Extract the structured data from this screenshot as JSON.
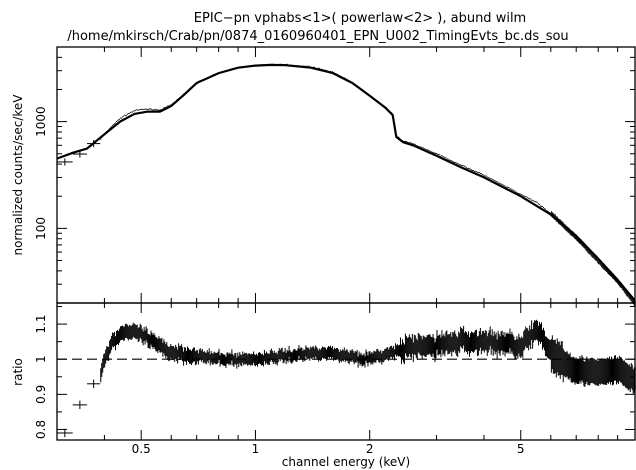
{
  "chart_data": [
    {
      "type": "line",
      "panel": "spectrum",
      "title": "EPIC−pn vphabs<1>( powerlaw<2> ), abund wilm",
      "subtitle": "/home/mkirsch/Crab/pn/0874_0160960401_EPN_U002_TimingEvts_bc.ds_sou",
      "xlabel": "",
      "ylabel": "normalized counts/sec/keV",
      "xscale": "log",
      "yscale": "log",
      "xlim": [
        0.3,
        10
      ],
      "ylim": [
        20,
        5000
      ],
      "yticks": [
        100,
        1000
      ],
      "ytick_labels": [
        "100",
        "1000"
      ],
      "grid": false,
      "series": [
        {
          "x": [
            0.3,
            0.33,
            0.36,
            0.4,
            0.44,
            0.48,
            0.52,
            0.56,
            0.6,
            0.65,
            0.7,
            0.8,
            0.9,
            1.0,
            1.1,
            1.2,
            1.4,
            1.6,
            1.8,
            2.0,
            2.2,
            2.3,
            2.35,
            2.45,
            2.6,
            3.0,
            3.5,
            4.0,
            5.0,
            6.0,
            7.0,
            8.0,
            9.0,
            10.0
          ],
          "y": [
            450,
            510,
            560,
            760,
            1000,
            1180,
            1240,
            1240,
            1400,
            1800,
            2300,
            2850,
            3200,
            3350,
            3400,
            3380,
            3200,
            2850,
            2300,
            1750,
            1350,
            1150,
            720,
            640,
            600,
            480,
            370,
            300,
            200,
            135,
            85,
            52,
            33,
            21
          ]
        }
      ]
    },
    {
      "type": "scatter",
      "panel": "residuals",
      "xlabel": "channel energy (keV)",
      "ylabel": "ratio",
      "xscale": "log",
      "xlim": [
        0.3,
        10
      ],
      "ylim": [
        0.77,
        1.16
      ],
      "xticks": [
        0.5,
        1,
        2,
        5
      ],
      "xtick_labels": [
        "0.5",
        "1",
        "2",
        "5"
      ],
      "yticks": [
        0.8,
        0.9,
        1.0,
        1.1
      ],
      "ytick_labels": [
        "0.8",
        "0.9",
        "1",
        "1.1"
      ],
      "reference_line": 1.0,
      "grid": false,
      "series": [
        {
          "x": [
            0.31,
            0.33,
            0.35,
            0.37,
            0.38,
            0.4,
            0.42,
            0.45,
            0.5,
            0.55,
            0.6,
            0.7,
            0.8,
            0.9,
            1.0,
            1.2,
            1.5,
            2.0,
            2.5,
            3.0,
            3.5,
            4.0,
            5.0,
            5.5,
            6.0,
            6.5,
            7.0,
            8.0,
            9.0,
            10.0
          ],
          "y": [
            0.79,
            0.87,
            0.94,
            0.93,
            0.9,
            1.0,
            1.05,
            1.08,
            1.07,
            1.04,
            1.02,
            1.01,
            1.0,
            1.0,
            1.0,
            1.01,
            1.02,
            1.0,
            1.03,
            1.04,
            1.05,
            1.05,
            1.04,
            1.08,
            1.02,
            0.99,
            0.97,
            0.96,
            0.97,
            0.94
          ]
        }
      ]
    }
  ]
}
